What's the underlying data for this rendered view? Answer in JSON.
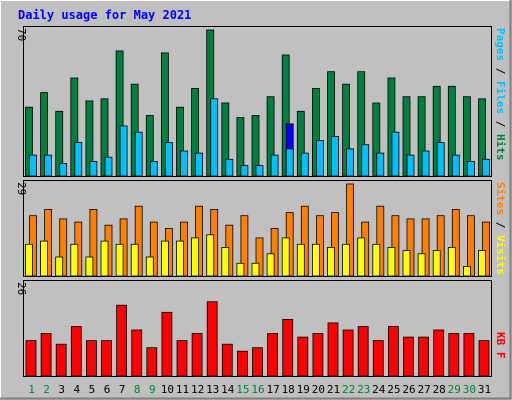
{
  "chart_data": [
    {
      "type": "bar",
      "title": "Daily usage for May 2021",
      "categories": [
        "1",
        "2",
        "3",
        "4",
        "5",
        "6",
        "7",
        "8",
        "9",
        "10",
        "11",
        "12",
        "13",
        "14",
        "15",
        "16",
        "17",
        "18",
        "19",
        "20",
        "21",
        "22",
        "23",
        "24",
        "25",
        "26",
        "27",
        "28",
        "29",
        "30",
        "31"
      ],
      "weekend_days": [
        "1",
        "2",
        "8",
        "9",
        "15",
        "16",
        "22",
        "23",
        "29",
        "30"
      ],
      "ymax_label": "70",
      "ylim": [
        0,
        70
      ],
      "axis_title": {
        "pages": "Pages",
        "sep1": " / ",
        "files": "Files",
        "sep2": " / ",
        "hits": "Hits"
      },
      "series": [
        {
          "name": "Hits",
          "color": "#008040",
          "values": [
            33,
            40,
            31,
            47,
            36,
            37,
            60,
            44,
            29,
            59,
            33,
            42,
            70,
            35,
            28,
            29,
            38,
            58,
            31,
            42,
            50,
            44,
            50,
            35,
            47,
            38,
            38,
            43,
            43,
            38,
            37
          ]
        },
        {
          "name": "Files",
          "color": "#00c0ff",
          "values": [
            10,
            10,
            6,
            16,
            7,
            9,
            24,
            21,
            7,
            16,
            12,
            11,
            37,
            8,
            5,
            5,
            10,
            13,
            11,
            17,
            19,
            13,
            15,
            11,
            21,
            10,
            12,
            16,
            10,
            7,
            8
          ]
        },
        {
          "name": "Pages",
          "color": "#0000ff",
          "values": [
            0,
            0,
            0,
            0,
            0,
            0,
            0,
            0,
            0,
            0,
            0,
            0,
            0,
            0,
            0,
            0,
            0,
            25,
            0,
            0,
            0,
            0,
            0,
            0,
            0,
            0,
            0,
            0,
            0,
            0,
            0
          ]
        }
      ]
    },
    {
      "type": "bar",
      "ymax_label": "29",
      "ylim": [
        0,
        29
      ],
      "axis_title": {
        "sites": "Sites",
        "sep": " / ",
        "visits": "Visits"
      },
      "series": [
        {
          "name": "Visits",
          "color": "#ff8000",
          "values": [
            19,
            21,
            18,
            17,
            21,
            16,
            18,
            22,
            17,
            15,
            17,
            22,
            21,
            16,
            19,
            12,
            15,
            20,
            22,
            19,
            20,
            29,
            17,
            22,
            19,
            18,
            18,
            19,
            21,
            19,
            17
          ]
        },
        {
          "name": "Sites",
          "color": "#ffff00",
          "values": [
            10,
            11,
            6,
            10,
            6,
            11,
            10,
            10,
            6,
            11,
            11,
            12,
            13,
            9,
            4,
            4,
            7,
            12,
            10,
            10,
            9,
            10,
            12,
            10,
            9,
            8,
            7,
            8,
            9,
            3,
            8
          ]
        }
      ]
    },
    {
      "type": "bar",
      "ymax_label": "26",
      "ylim": [
        0,
        26
      ],
      "axis_title": {
        "kbf": "KB F"
      },
      "series": [
        {
          "name": "KB F",
          "color": "#ff0000",
          "values": [
            10,
            12,
            9,
            14,
            10,
            10,
            20,
            13,
            8,
            18,
            10,
            12,
            21,
            9,
            7,
            8,
            12,
            16,
            11,
            12,
            15,
            13,
            14,
            10,
            14,
            11,
            11,
            13,
            12,
            12,
            10
          ]
        }
      ]
    }
  ]
}
